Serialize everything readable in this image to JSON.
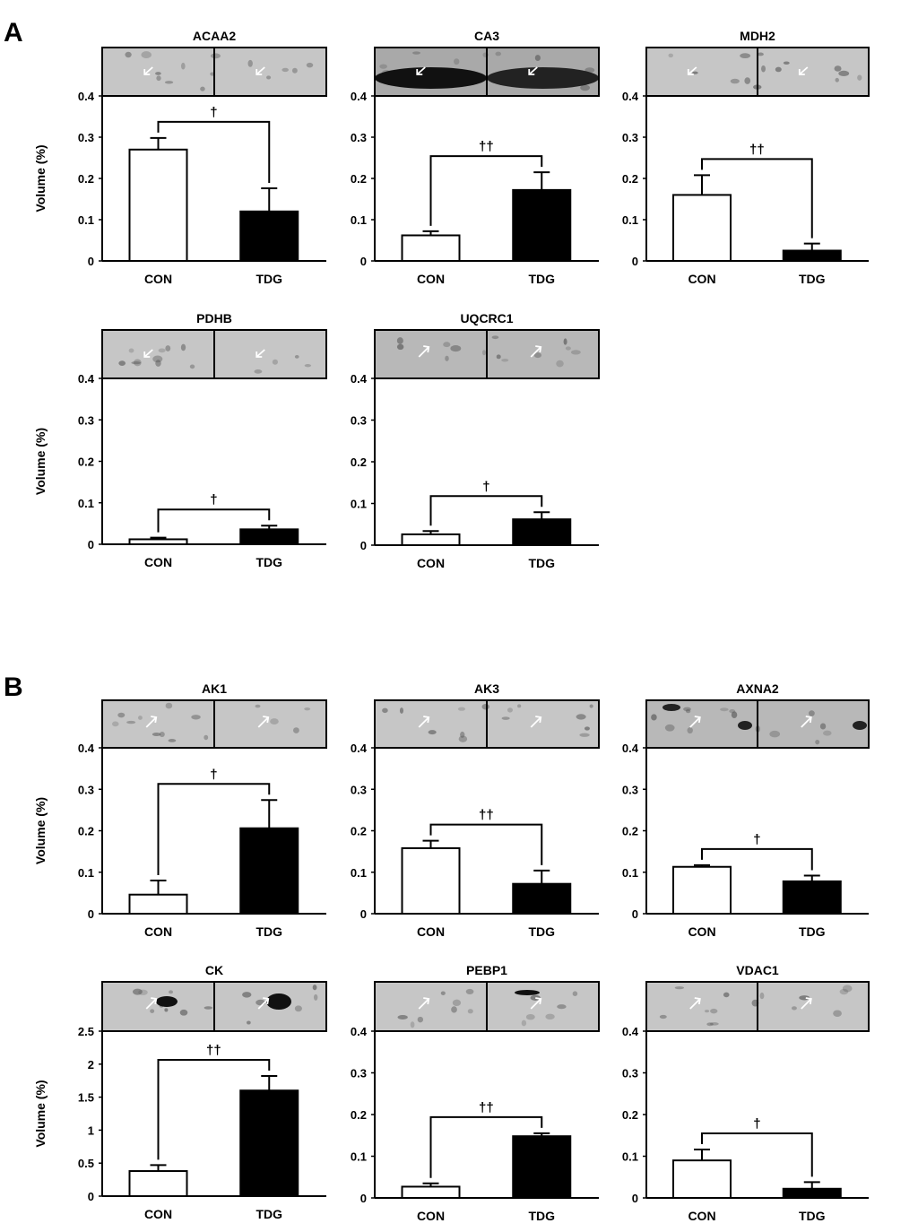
{
  "panels": [
    {
      "letter": "A"
    },
    {
      "letter": "B"
    }
  ],
  "ylabel": "Volume (%)",
  "chart_data": [
    {
      "type": "bar",
      "title": "ACAA2",
      "categories": [
        "CON",
        "TDG"
      ],
      "values": [
        0.27,
        0.12
      ],
      "errors": [
        0.028,
        0.056
      ],
      "yticks": [
        "0",
        "0.1",
        "0.2",
        "0.3",
        "0.4"
      ],
      "ylim": [
        0,
        0.4
      ],
      "ylabel": "Volume (%)",
      "significance": "†",
      "gel": "light"
    },
    {
      "type": "bar",
      "title": "CA3",
      "categories": [
        "CON",
        "TDG"
      ],
      "values": [
        0.062,
        0.172
      ],
      "errors": [
        0.01,
        0.043
      ],
      "yticks": [
        "0",
        "0.1",
        "0.2",
        "0.3",
        "0.4"
      ],
      "ylim": [
        0,
        0.4
      ],
      "ylabel": "",
      "significance": "††",
      "gel": "dark"
    },
    {
      "type": "bar",
      "title": "MDH2",
      "categories": [
        "CON",
        "TDG"
      ],
      "values": [
        0.16,
        0.025
      ],
      "errors": [
        0.048,
        0.017
      ],
      "yticks": [
        "0",
        "0.1",
        "0.2",
        "0.3",
        "0.4"
      ],
      "ylim": [
        0,
        0.4
      ],
      "ylabel": "",
      "significance": "††",
      "gel": "light"
    },
    {
      "type": "bar",
      "title": "PDHB",
      "categories": [
        "CON",
        "TDG"
      ],
      "values": [
        0.012,
        0.036
      ],
      "errors": [
        0.004,
        0.009
      ],
      "yticks": [
        "0",
        "0.1",
        "0.2",
        "0.3",
        "0.4"
      ],
      "ylim": [
        0,
        0.4
      ],
      "ylabel": "Volume (%)",
      "significance": "†",
      "gel": "light"
    },
    {
      "type": "bar",
      "title": "UQCRC1",
      "categories": [
        "CON",
        "TDG"
      ],
      "values": [
        0.026,
        0.062
      ],
      "errors": [
        0.008,
        0.017
      ],
      "yticks": [
        "0",
        "0.1",
        "0.2",
        "0.3",
        "0.4"
      ],
      "ylim": [
        0,
        0.4
      ],
      "ylabel": "",
      "significance": "†",
      "gel": "mid"
    },
    {
      "type": "bar",
      "title": "AK1",
      "categories": [
        "CON",
        "TDG"
      ],
      "values": [
        0.046,
        0.206
      ],
      "errors": [
        0.034,
        0.068
      ],
      "yticks": [
        "0",
        "0.1",
        "0.2",
        "0.3",
        "0.4"
      ],
      "ylim": [
        0,
        0.4
      ],
      "ylabel": "Volume (%)",
      "significance": "†",
      "gel": "light"
    },
    {
      "type": "bar",
      "title": "AK3",
      "categories": [
        "CON",
        "TDG"
      ],
      "values": [
        0.158,
        0.072
      ],
      "errors": [
        0.018,
        0.032
      ],
      "yticks": [
        "0",
        "0.1",
        "0.2",
        "0.3",
        "0.4"
      ],
      "ylim": [
        0,
        0.4
      ],
      "ylabel": "",
      "significance": "††",
      "gel": "light"
    },
    {
      "type": "bar",
      "title": "AXNA2",
      "categories": [
        "CON",
        "TDG"
      ],
      "values": [
        0.113,
        0.078
      ],
      "errors": [
        0.004,
        0.014
      ],
      "yticks": [
        "0",
        "0.1",
        "0.2",
        "0.3",
        "0.4"
      ],
      "ylim": [
        0,
        0.4
      ],
      "ylabel": "",
      "significance": "†",
      "gel": "mid"
    },
    {
      "type": "bar",
      "title": "CK",
      "categories": [
        "CON",
        "TDG"
      ],
      "values": [
        0.38,
        1.6
      ],
      "errors": [
        0.09,
        0.22
      ],
      "yticks": [
        "0",
        "0.5",
        "1",
        "1.5",
        "2",
        "2.5"
      ],
      "ylim": [
        0,
        2.5
      ],
      "ylabel": "Volume (%)",
      "significance": "††",
      "gel": "light"
    },
    {
      "type": "bar",
      "title": "PEBP1",
      "categories": [
        "CON",
        "TDG"
      ],
      "values": [
        0.027,
        0.148
      ],
      "errors": [
        0.008,
        0.007
      ],
      "yticks": [
        "0",
        "0.1",
        "0.2",
        "0.3",
        "0.4"
      ],
      "ylim": [
        0,
        0.4
      ],
      "ylabel": "",
      "significance": "††",
      "gel": "light"
    },
    {
      "type": "bar",
      "title": "VDAC1",
      "categories": [
        "CON",
        "TDG"
      ],
      "values": [
        0.09,
        0.022
      ],
      "errors": [
        0.026,
        0.016
      ],
      "yticks": [
        "0",
        "0.1",
        "0.2",
        "0.3",
        "0.4"
      ],
      "ylim": [
        0,
        0.4
      ],
      "ylabel": "",
      "significance": "†",
      "gel": "light"
    }
  ]
}
